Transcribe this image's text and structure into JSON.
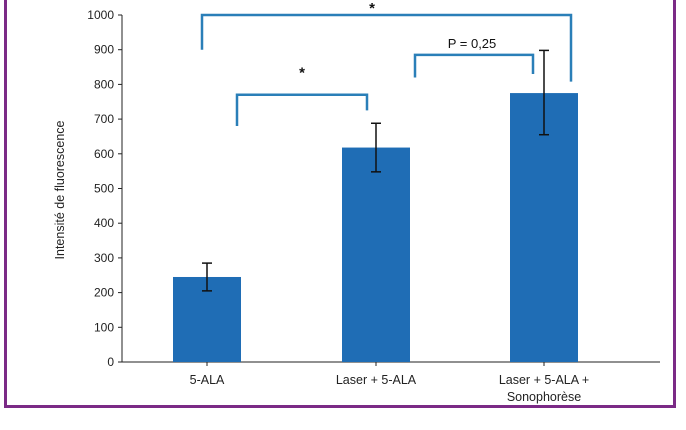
{
  "chart_data": {
    "type": "bar",
    "categories": [
      "5-ALA",
      "Laser + 5-ALA",
      "Laser + 5-ALA +\nSonophorèse"
    ],
    "values": [
      245,
      618,
      775
    ],
    "error": [
      [
        205,
        285
      ],
      [
        548,
        688
      ],
      [
        655,
        898
      ]
    ],
    "ylabel": "Intensité de fluorescence",
    "xlabel": "",
    "title": "",
    "ylim": [
      0,
      1000
    ],
    "yticks": [
      0,
      100,
      200,
      300,
      400,
      500,
      600,
      700,
      800,
      900,
      1000
    ],
    "bar_color": "#1f6db5",
    "bracket_color": "#2a7fb8",
    "grid": false,
    "annotations": [
      {
        "label": "*",
        "from": 0,
        "to": 1
      },
      {
        "label": "P = 0,25",
        "from": 1,
        "to": 2
      },
      {
        "label": "*",
        "from": 0,
        "to": 2
      }
    ]
  },
  "frame_color": "#7b2a86"
}
